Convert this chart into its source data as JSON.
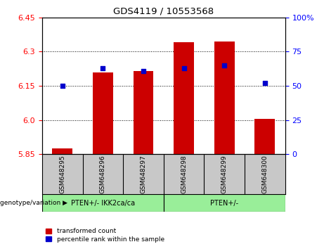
{
  "title": "GDS4119 / 10553568",
  "samples": [
    "GSM648295",
    "GSM648296",
    "GSM648297",
    "GSM648298",
    "GSM648299",
    "GSM648300"
  ],
  "red_values": [
    5.875,
    6.21,
    6.215,
    6.34,
    6.345,
    6.005
  ],
  "blue_values": [
    50,
    63,
    61,
    63,
    65,
    52
  ],
  "y_min": 5.85,
  "y_max": 6.45,
  "y_ticks": [
    5.85,
    6.0,
    6.15,
    6.3,
    6.45
  ],
  "right_y_ticks": [
    0,
    25,
    50,
    75,
    100
  ],
  "right_y_labels": [
    "0",
    "25",
    "50",
    "75",
    "100%"
  ],
  "bar_color": "#cc0000",
  "dot_color": "#0000cc",
  "group1_label": "PTEN+/- IKK2ca/ca",
  "group2_label": "PTEN+/-",
  "group1_color": "#99ee99",
  "group2_color": "#99ee99",
  "legend_red": "transformed count",
  "legend_blue": "percentile rank within the sample",
  "background_sample": "#c8c8c8",
  "genotype_label": "genotype/variation",
  "bar_width": 0.5
}
